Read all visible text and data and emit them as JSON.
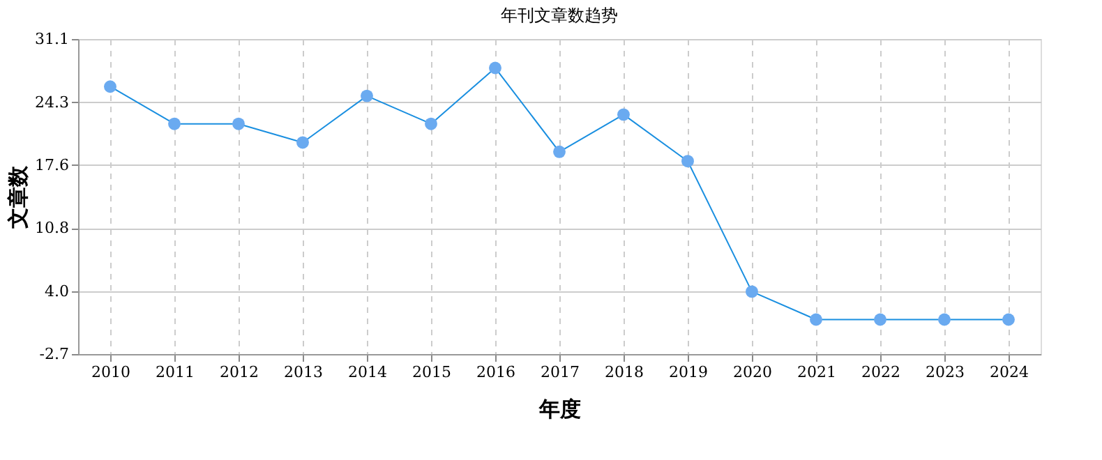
{
  "chart_data": {
    "type": "line",
    "title": "年刊文章数趋势",
    "xlabel": "年度",
    "ylabel": "文章数",
    "categories": [
      "2010",
      "2011",
      "2012",
      "2013",
      "2014",
      "2015",
      "2016",
      "2017",
      "2018",
      "2019",
      "2020",
      "2021",
      "2022",
      "2023",
      "2024"
    ],
    "series": [
      {
        "color": "#1a8fe0",
        "values": [
          26,
          22,
          22,
          20,
          25,
          22,
          28,
          19,
          23,
          18,
          4,
          1,
          1,
          1,
          1
        ]
      }
    ],
    "ylim": [
      -2.7,
      31.1
    ],
    "yticks": [
      -2.7,
      {
        "value": 4,
        "label": "4.0"
      },
      10.8,
      17.6,
      24.3,
      31.1
    ],
    "grid": true,
    "marker": "circle",
    "line_style": "solid",
    "legend": false
  }
}
